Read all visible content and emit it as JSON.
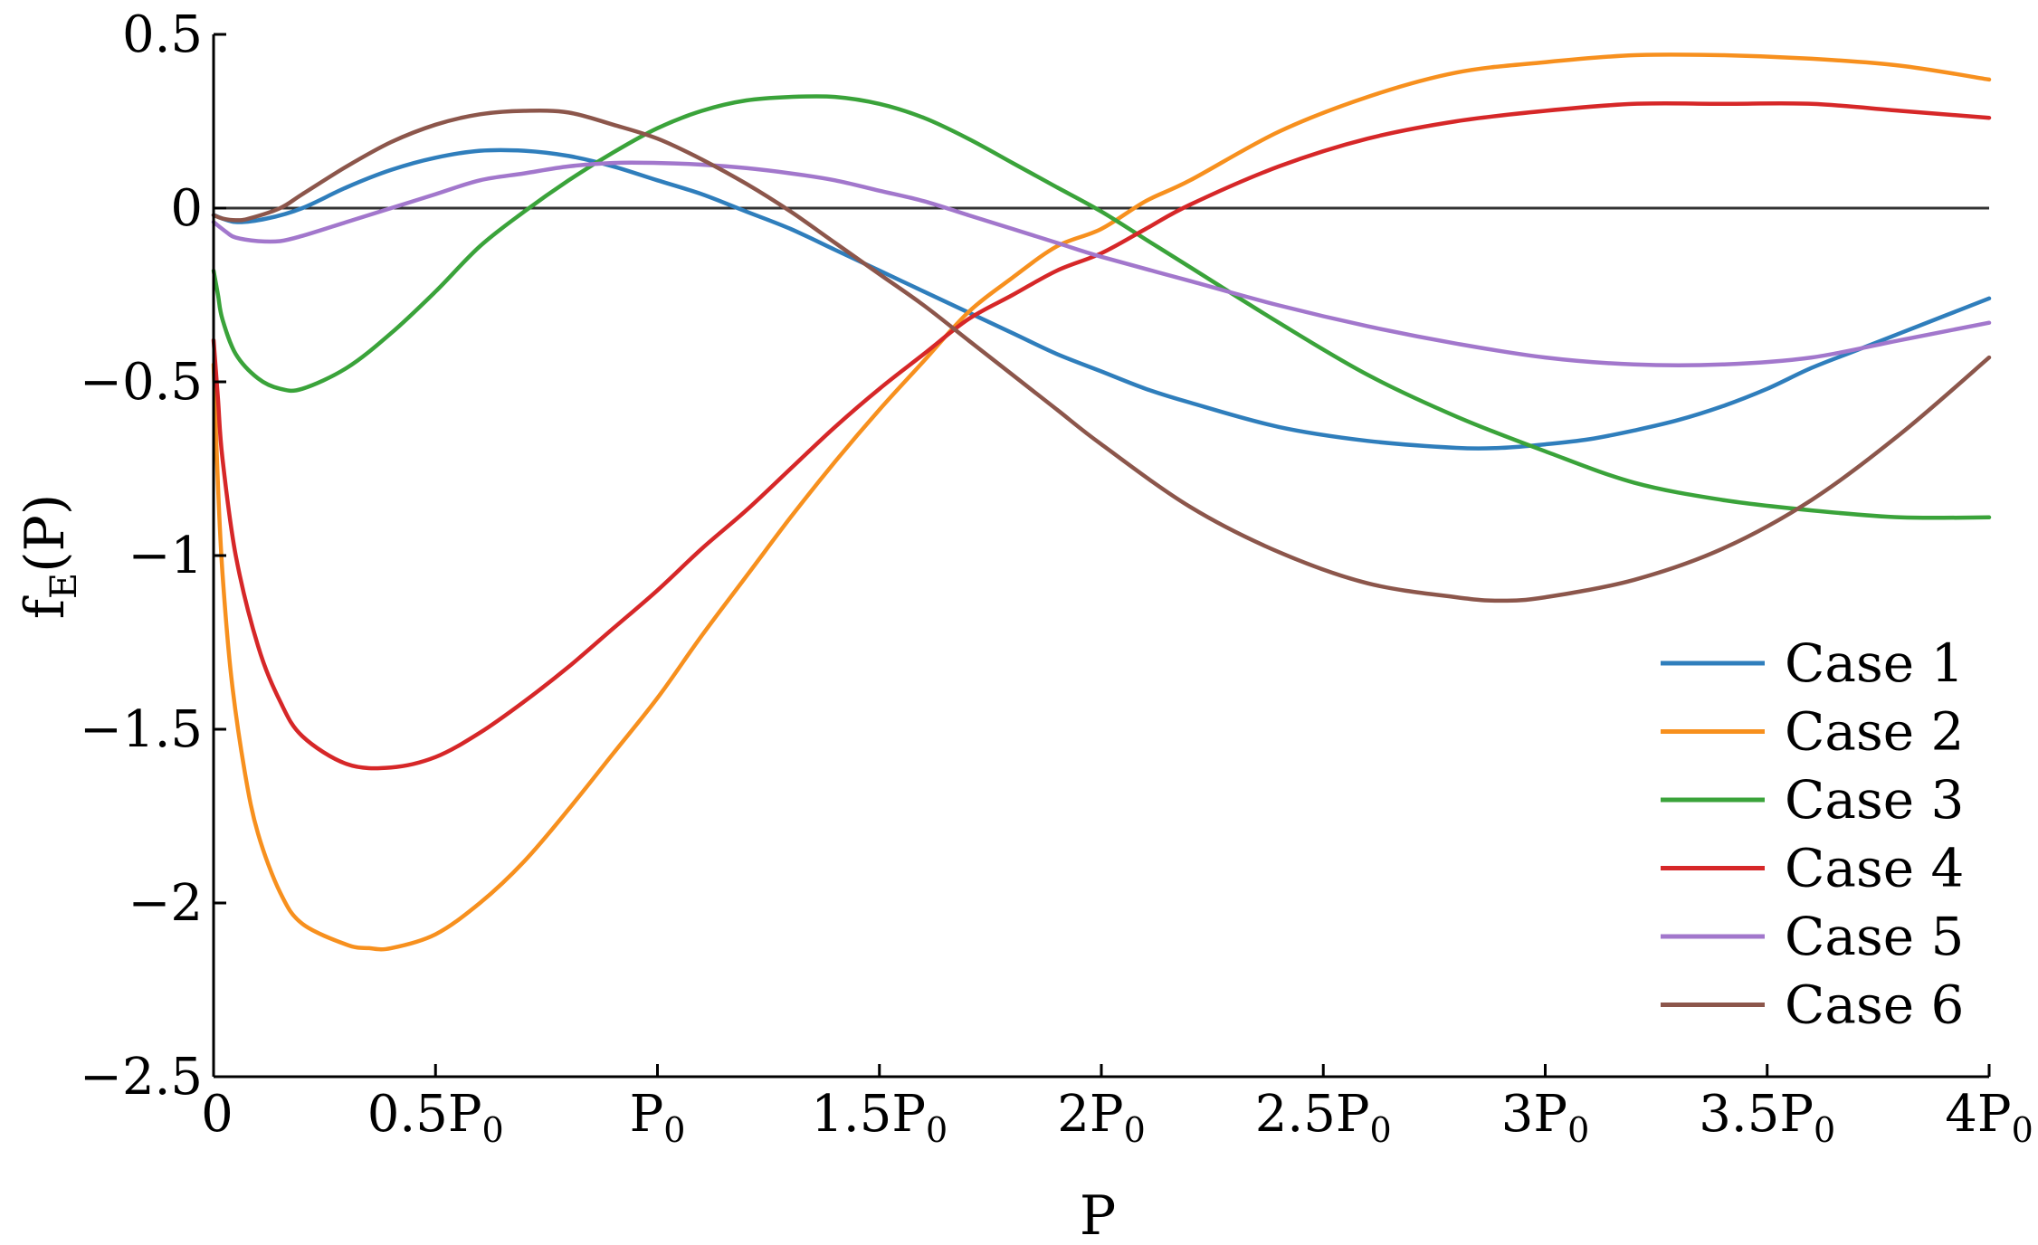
{
  "chart_data": {
    "type": "line",
    "xlabel": "P",
    "ylabel": "f_E(P)",
    "xlim": [
      0,
      4
    ],
    "ylim": [
      -2.5,
      0.5
    ],
    "x_ticks": [
      {
        "value": 0,
        "base": "0",
        "sub": ""
      },
      {
        "value": 0.5,
        "base": "0.5P",
        "sub": "0"
      },
      {
        "value": 1,
        "base": "P",
        "sub": "0"
      },
      {
        "value": 1.5,
        "base": "1.5P",
        "sub": "0"
      },
      {
        "value": 2,
        "base": "2P",
        "sub": "0"
      },
      {
        "value": 2.5,
        "base": "2.5P",
        "sub": "0"
      },
      {
        "value": 3,
        "base": "3P",
        "sub": "0"
      },
      {
        "value": 3.5,
        "base": "3.5P",
        "sub": "0"
      },
      {
        "value": 4,
        "base": "4P",
        "sub": "0"
      }
    ],
    "y_ticks": [
      {
        "value": 0.5,
        "label": "0.5"
      },
      {
        "value": 0,
        "label": "0"
      },
      {
        "value": -0.5,
        "label": "−0.5"
      },
      {
        "value": -1,
        "label": "−1"
      },
      {
        "value": -1.5,
        "label": "−1.5"
      },
      {
        "value": -2,
        "label": "−2"
      },
      {
        "value": -2.5,
        "label": "−2.5"
      }
    ],
    "zero_line": true,
    "grid": false,
    "legend_position": "bottom-right",
    "series": [
      {
        "name": "Case 1",
        "color": "#2f7ebc",
        "points": [
          [
            0,
            -0.02
          ],
          [
            0.05,
            -0.04
          ],
          [
            0.12,
            -0.03
          ],
          [
            0.2,
            0.0
          ],
          [
            0.3,
            0.06
          ],
          [
            0.4,
            0.11
          ],
          [
            0.5,
            0.145
          ],
          [
            0.6,
            0.165
          ],
          [
            0.7,
            0.165
          ],
          [
            0.8,
            0.15
          ],
          [
            0.9,
            0.12
          ],
          [
            1.0,
            0.08
          ],
          [
            1.1,
            0.04
          ],
          [
            1.2,
            -0.01
          ],
          [
            1.3,
            -0.06
          ],
          [
            1.4,
            -0.12
          ],
          [
            1.5,
            -0.18
          ],
          [
            1.6,
            -0.24
          ],
          [
            1.7,
            -0.3
          ],
          [
            1.8,
            -0.36
          ],
          [
            1.9,
            -0.42
          ],
          [
            2.0,
            -0.47
          ],
          [
            2.1,
            -0.52
          ],
          [
            2.2,
            -0.56
          ],
          [
            2.4,
            -0.63
          ],
          [
            2.6,
            -0.67
          ],
          [
            2.8,
            -0.69
          ],
          [
            2.9,
            -0.69
          ],
          [
            3.0,
            -0.68
          ],
          [
            3.1,
            -0.665
          ],
          [
            3.2,
            -0.64
          ],
          [
            3.3,
            -0.61
          ],
          [
            3.4,
            -0.57
          ],
          [
            3.5,
            -0.52
          ],
          [
            3.6,
            -0.46
          ],
          [
            3.7,
            -0.41
          ],
          [
            3.8,
            -0.36
          ],
          [
            3.9,
            -0.31
          ],
          [
            4.0,
            -0.26
          ]
        ]
      },
      {
        "name": "Case 2",
        "color": "#f7901e",
        "points": [
          [
            0,
            -0.45
          ],
          [
            0.01,
            -0.8
          ],
          [
            0.02,
            -1.05
          ],
          [
            0.04,
            -1.35
          ],
          [
            0.07,
            -1.62
          ],
          [
            0.1,
            -1.8
          ],
          [
            0.15,
            -1.97
          ],
          [
            0.2,
            -2.06
          ],
          [
            0.3,
            -2.12
          ],
          [
            0.35,
            -2.13
          ],
          [
            0.4,
            -2.13
          ],
          [
            0.5,
            -2.09
          ],
          [
            0.6,
            -2.0
          ],
          [
            0.7,
            -1.88
          ],
          [
            0.8,
            -1.73
          ],
          [
            0.9,
            -1.57
          ],
          [
            1.0,
            -1.41
          ],
          [
            1.1,
            -1.23
          ],
          [
            1.2,
            -1.06
          ],
          [
            1.3,
            -0.89
          ],
          [
            1.4,
            -0.73
          ],
          [
            1.5,
            -0.58
          ],
          [
            1.6,
            -0.44
          ],
          [
            1.7,
            -0.3
          ],
          [
            1.8,
            -0.2
          ],
          [
            1.9,
            -0.11
          ],
          [
            2.0,
            -0.06
          ],
          [
            2.1,
            0.02
          ],
          [
            2.2,
            0.08
          ],
          [
            2.4,
            0.22
          ],
          [
            2.6,
            0.32
          ],
          [
            2.8,
            0.39
          ],
          [
            3.0,
            0.42
          ],
          [
            3.2,
            0.44
          ],
          [
            3.4,
            0.44
          ],
          [
            3.6,
            0.43
          ],
          [
            3.8,
            0.41
          ],
          [
            4.0,
            0.37
          ]
        ]
      },
      {
        "name": "Case 3",
        "color": "#3aa33a",
        "points": [
          [
            0,
            -0.18
          ],
          [
            0.01,
            -0.25
          ],
          [
            0.02,
            -0.32
          ],
          [
            0.05,
            -0.42
          ],
          [
            0.1,
            -0.49
          ],
          [
            0.15,
            -0.52
          ],
          [
            0.2,
            -0.52
          ],
          [
            0.3,
            -0.46
          ],
          [
            0.4,
            -0.36
          ],
          [
            0.5,
            -0.24
          ],
          [
            0.6,
            -0.11
          ],
          [
            0.7,
            -0.01
          ],
          [
            0.8,
            0.08
          ],
          [
            0.9,
            0.16
          ],
          [
            1.0,
            0.23
          ],
          [
            1.1,
            0.28
          ],
          [
            1.2,
            0.31
          ],
          [
            1.3,
            0.32
          ],
          [
            1.4,
            0.32
          ],
          [
            1.5,
            0.3
          ],
          [
            1.6,
            0.26
          ],
          [
            1.7,
            0.2
          ],
          [
            1.8,
            0.13
          ],
          [
            1.9,
            0.06
          ],
          [
            2.0,
            -0.01
          ],
          [
            2.1,
            -0.09
          ],
          [
            2.2,
            -0.17
          ],
          [
            2.4,
            -0.33
          ],
          [
            2.6,
            -0.48
          ],
          [
            2.8,
            -0.6
          ],
          [
            3.0,
            -0.7
          ],
          [
            3.2,
            -0.79
          ],
          [
            3.4,
            -0.84
          ],
          [
            3.6,
            -0.87
          ],
          [
            3.8,
            -0.89
          ],
          [
            4.0,
            -0.89
          ]
        ]
      },
      {
        "name": "Case 4",
        "color": "#d62728",
        "points": [
          [
            0,
            -0.38
          ],
          [
            0.01,
            -0.55
          ],
          [
            0.02,
            -0.72
          ],
          [
            0.05,
            -1.0
          ],
          [
            0.1,
            -1.26
          ],
          [
            0.15,
            -1.42
          ],
          [
            0.2,
            -1.52
          ],
          [
            0.3,
            -1.6
          ],
          [
            0.4,
            -1.61
          ],
          [
            0.5,
            -1.58
          ],
          [
            0.6,
            -1.51
          ],
          [
            0.7,
            -1.42
          ],
          [
            0.8,
            -1.32
          ],
          [
            0.9,
            -1.21
          ],
          [
            1.0,
            -1.1
          ],
          [
            1.1,
            -0.98
          ],
          [
            1.2,
            -0.87
          ],
          [
            1.3,
            -0.75
          ],
          [
            1.4,
            -0.63
          ],
          [
            1.5,
            -0.52
          ],
          [
            1.6,
            -0.42
          ],
          [
            1.7,
            -0.32
          ],
          [
            1.8,
            -0.25
          ],
          [
            1.9,
            -0.18
          ],
          [
            2.0,
            -0.13
          ],
          [
            2.1,
            -0.06
          ],
          [
            2.2,
            0.01
          ],
          [
            2.4,
            0.12
          ],
          [
            2.6,
            0.2
          ],
          [
            2.8,
            0.25
          ],
          [
            3.0,
            0.28
          ],
          [
            3.2,
            0.3
          ],
          [
            3.4,
            0.3
          ],
          [
            3.6,
            0.3
          ],
          [
            3.8,
            0.28
          ],
          [
            4.0,
            0.26
          ]
        ]
      },
      {
        "name": "Case 5",
        "color": "#a277cc",
        "points": [
          [
            0,
            -0.04
          ],
          [
            0.03,
            -0.07
          ],
          [
            0.05,
            -0.085
          ],
          [
            0.1,
            -0.095
          ],
          [
            0.15,
            -0.095
          ],
          [
            0.2,
            -0.08
          ],
          [
            0.3,
            -0.04
          ],
          [
            0.4,
            0.0
          ],
          [
            0.5,
            0.04
          ],
          [
            0.6,
            0.08
          ],
          [
            0.7,
            0.1
          ],
          [
            0.8,
            0.12
          ],
          [
            0.9,
            0.13
          ],
          [
            1.0,
            0.13
          ],
          [
            1.1,
            0.125
          ],
          [
            1.2,
            0.115
          ],
          [
            1.3,
            0.1
          ],
          [
            1.4,
            0.08
          ],
          [
            1.5,
            0.05
          ],
          [
            1.6,
            0.02
          ],
          [
            1.7,
            -0.02
          ],
          [
            1.8,
            -0.06
          ],
          [
            1.9,
            -0.1
          ],
          [
            2.0,
            -0.14
          ],
          [
            2.2,
            -0.21
          ],
          [
            2.4,
            -0.28
          ],
          [
            2.6,
            -0.34
          ],
          [
            2.8,
            -0.39
          ],
          [
            3.0,
            -0.43
          ],
          [
            3.2,
            -0.45
          ],
          [
            3.4,
            -0.45
          ],
          [
            3.6,
            -0.43
          ],
          [
            3.8,
            -0.38
          ],
          [
            4.0,
            -0.33
          ]
        ]
      },
      {
        "name": "Case 6",
        "color": "#8c564b",
        "points": [
          [
            0,
            -0.02
          ],
          [
            0.02,
            -0.03
          ],
          [
            0.05,
            -0.035
          ],
          [
            0.08,
            -0.03
          ],
          [
            0.15,
            0.0
          ],
          [
            0.2,
            0.04
          ],
          [
            0.3,
            0.12
          ],
          [
            0.4,
            0.19
          ],
          [
            0.5,
            0.24
          ],
          [
            0.6,
            0.27
          ],
          [
            0.7,
            0.28
          ],
          [
            0.8,
            0.275
          ],
          [
            0.9,
            0.24
          ],
          [
            1.0,
            0.2
          ],
          [
            1.1,
            0.14
          ],
          [
            1.2,
            0.07
          ],
          [
            1.3,
            -0.01
          ],
          [
            1.4,
            -0.1
          ],
          [
            1.5,
            -0.19
          ],
          [
            1.6,
            -0.28
          ],
          [
            1.7,
            -0.38
          ],
          [
            1.8,
            -0.48
          ],
          [
            1.9,
            -0.58
          ],
          [
            2.0,
            -0.68
          ],
          [
            2.2,
            -0.86
          ],
          [
            2.4,
            -0.99
          ],
          [
            2.6,
            -1.08
          ],
          [
            2.8,
            -1.12
          ],
          [
            2.9,
            -1.13
          ],
          [
            3.0,
            -1.12
          ],
          [
            3.2,
            -1.07
          ],
          [
            3.4,
            -0.98
          ],
          [
            3.6,
            -0.84
          ],
          [
            3.8,
            -0.65
          ],
          [
            4.0,
            -0.43
          ]
        ]
      }
    ]
  }
}
